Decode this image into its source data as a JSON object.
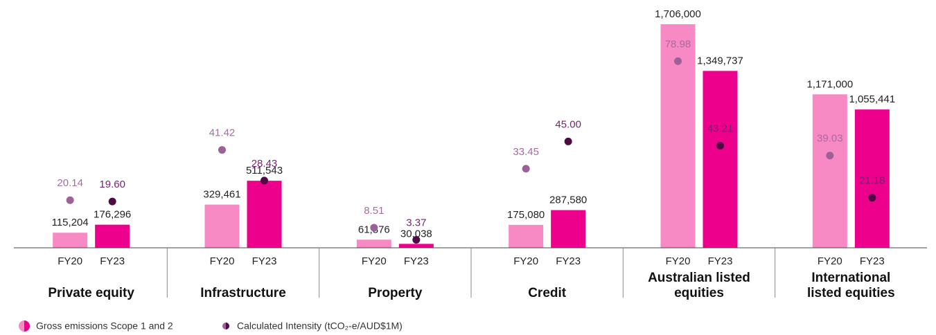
{
  "chart_data": {
    "type": "bar",
    "categories": [
      "Private equity",
      "Infrastructure",
      "Property",
      "Credit",
      "Australian listed equities",
      "International listed equities"
    ],
    "periods": [
      "FY20",
      "FY23"
    ],
    "ylim": [
      0,
      1706000
    ],
    "y2lim": [
      0,
      94.6
    ],
    "emissions": {
      "name": "Gross emissions Scope 1 and 2",
      "type": "bar",
      "series": [
        {
          "color": "#f78ac4",
          "values": [
            115204,
            329461,
            61876,
            175080,
            1706000,
            1171000
          ],
          "value_labels": [
            "115,204",
            "329,461",
            "61,876",
            "175,080",
            "1,706,000",
            "1,171,000"
          ]
        },
        {
          "color": "#ec008c",
          "values": [
            176296,
            511543,
            30038,
            287580,
            1349737,
            1055441
          ],
          "value_labels": [
            "176,296",
            "511,543",
            "30,038",
            "287,580",
            "1,349,737",
            "1,055,441"
          ]
        }
      ]
    },
    "intensity": {
      "name": "Calculated Intensity (tCO₂-e/AUD$1M)",
      "type": "scatter",
      "axis": "y2",
      "series": [
        {
          "color": "#9c6199",
          "label_color": "#a66ba3",
          "values": [
            20.14,
            41.42,
            8.51,
            33.45,
            78.98,
            39.03
          ]
        },
        {
          "color": "#4f0a45",
          "label_color": "#7b1f72",
          "values": [
            19.6,
            28.43,
            3.37,
            45,
            43.21,
            21.18
          ],
          "value_labels": [
            "19.60",
            "28.43",
            "3.37",
            "45.00",
            "43.21",
            "21.18"
          ]
        }
      ]
    }
  }
}
